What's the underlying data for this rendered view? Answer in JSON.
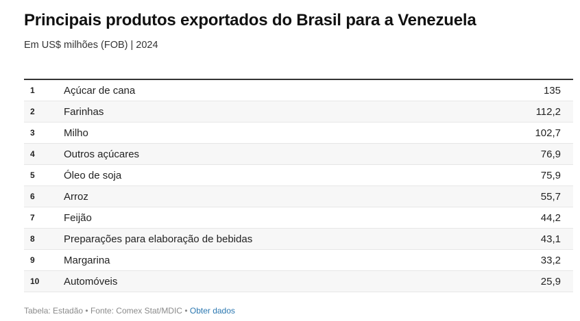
{
  "header": {
    "title": "Principais produtos exportados do Brasil para a Venezuela",
    "subtitle": "Em US$ milhões (FOB) | 2024"
  },
  "chart_data": {
    "type": "table",
    "title": "Principais produtos exportados do Brasil para a Venezuela",
    "subtitle": "Em US$ milhões (FOB) | 2024",
    "rows": [
      {
        "rank": "1",
        "product": "Açúcar de cana",
        "value": "135"
      },
      {
        "rank": "2",
        "product": "Farinhas",
        "value": "112,2"
      },
      {
        "rank": "3",
        "product": "Milho",
        "value": "102,7"
      },
      {
        "rank": "4",
        "product": "Outros açúcares",
        "value": "76,9"
      },
      {
        "rank": "5",
        "product": "Óleo de soja",
        "value": "75,9"
      },
      {
        "rank": "6",
        "product": "Arroz",
        "value": "55,7"
      },
      {
        "rank": "7",
        "product": "Feijão",
        "value": "44,2"
      },
      {
        "rank": "8",
        "product": "Preparações para elaboração de bebidas",
        "value": "43,1"
      },
      {
        "rank": "9",
        "product": "Margarina",
        "value": "33,2"
      },
      {
        "rank": "10",
        "product": "Automóveis",
        "value": "25,9"
      }
    ]
  },
  "footer": {
    "credit": "Tabela: Estadão",
    "separator": " • ",
    "source": "Fonte: Comex Stat/MDIC",
    "link": "Obter dados"
  }
}
